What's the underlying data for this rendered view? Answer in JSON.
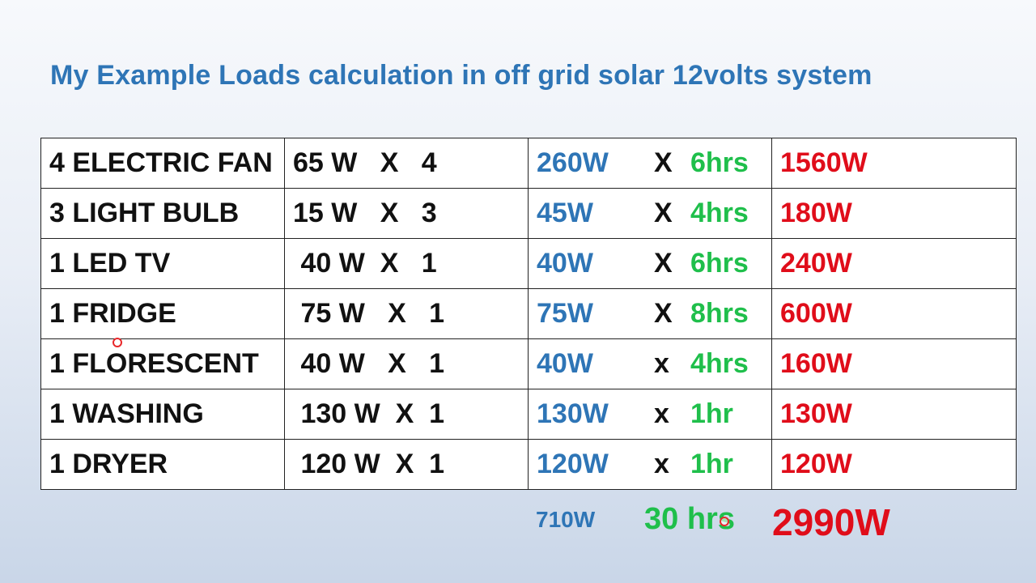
{
  "title": "My Example Loads calculation in off grid solar 12volts system",
  "rows": [
    {
      "item": "4 ELECTRIC FAN",
      "rate": "65 W   X   4",
      "watts": "260W",
      "x": "X",
      "hours": "6hrs",
      "total": "1560W"
    },
    {
      "item": "3 LIGHT  BULB",
      "rate": "15 W   X   3",
      "watts": "45W",
      "x": "X",
      "hours": "4hrs",
      "total": "180W"
    },
    {
      "item": "1 LED TV",
      "rate": " 40 W  X   1",
      "watts": "40W",
      "x": "X",
      "hours": "6hrs",
      "total": "240W"
    },
    {
      "item": "1 FRIDGE",
      "rate": " 75 W   X   1",
      "watts": "75W",
      "x": "X",
      "hours": "8hrs",
      "total": "600W"
    },
    {
      "item": "1 FLORESCENT",
      "rate": " 40 W   X   1",
      "watts": "40W",
      "x": "x",
      "hours": "4hrs",
      "total": "160W"
    },
    {
      "item": "1 WASHING",
      "rate": " 130 W  X  1",
      "watts": "130W",
      "x": "x",
      "hours": "1hr",
      "total": "130W"
    },
    {
      "item": "1 DRYER",
      "rate": " 120 W  X  1",
      "watts": "120W",
      "x": "x",
      "hours": "1hr",
      "total": "120W"
    }
  ],
  "totals": {
    "watts": "710W",
    "hours": "30 hrs",
    "total": "2990W"
  },
  "colors": {
    "title": "#2e75b6",
    "watts": "#2e75b6",
    "hours": "#1fbf4b",
    "total": "#e00d1a"
  }
}
